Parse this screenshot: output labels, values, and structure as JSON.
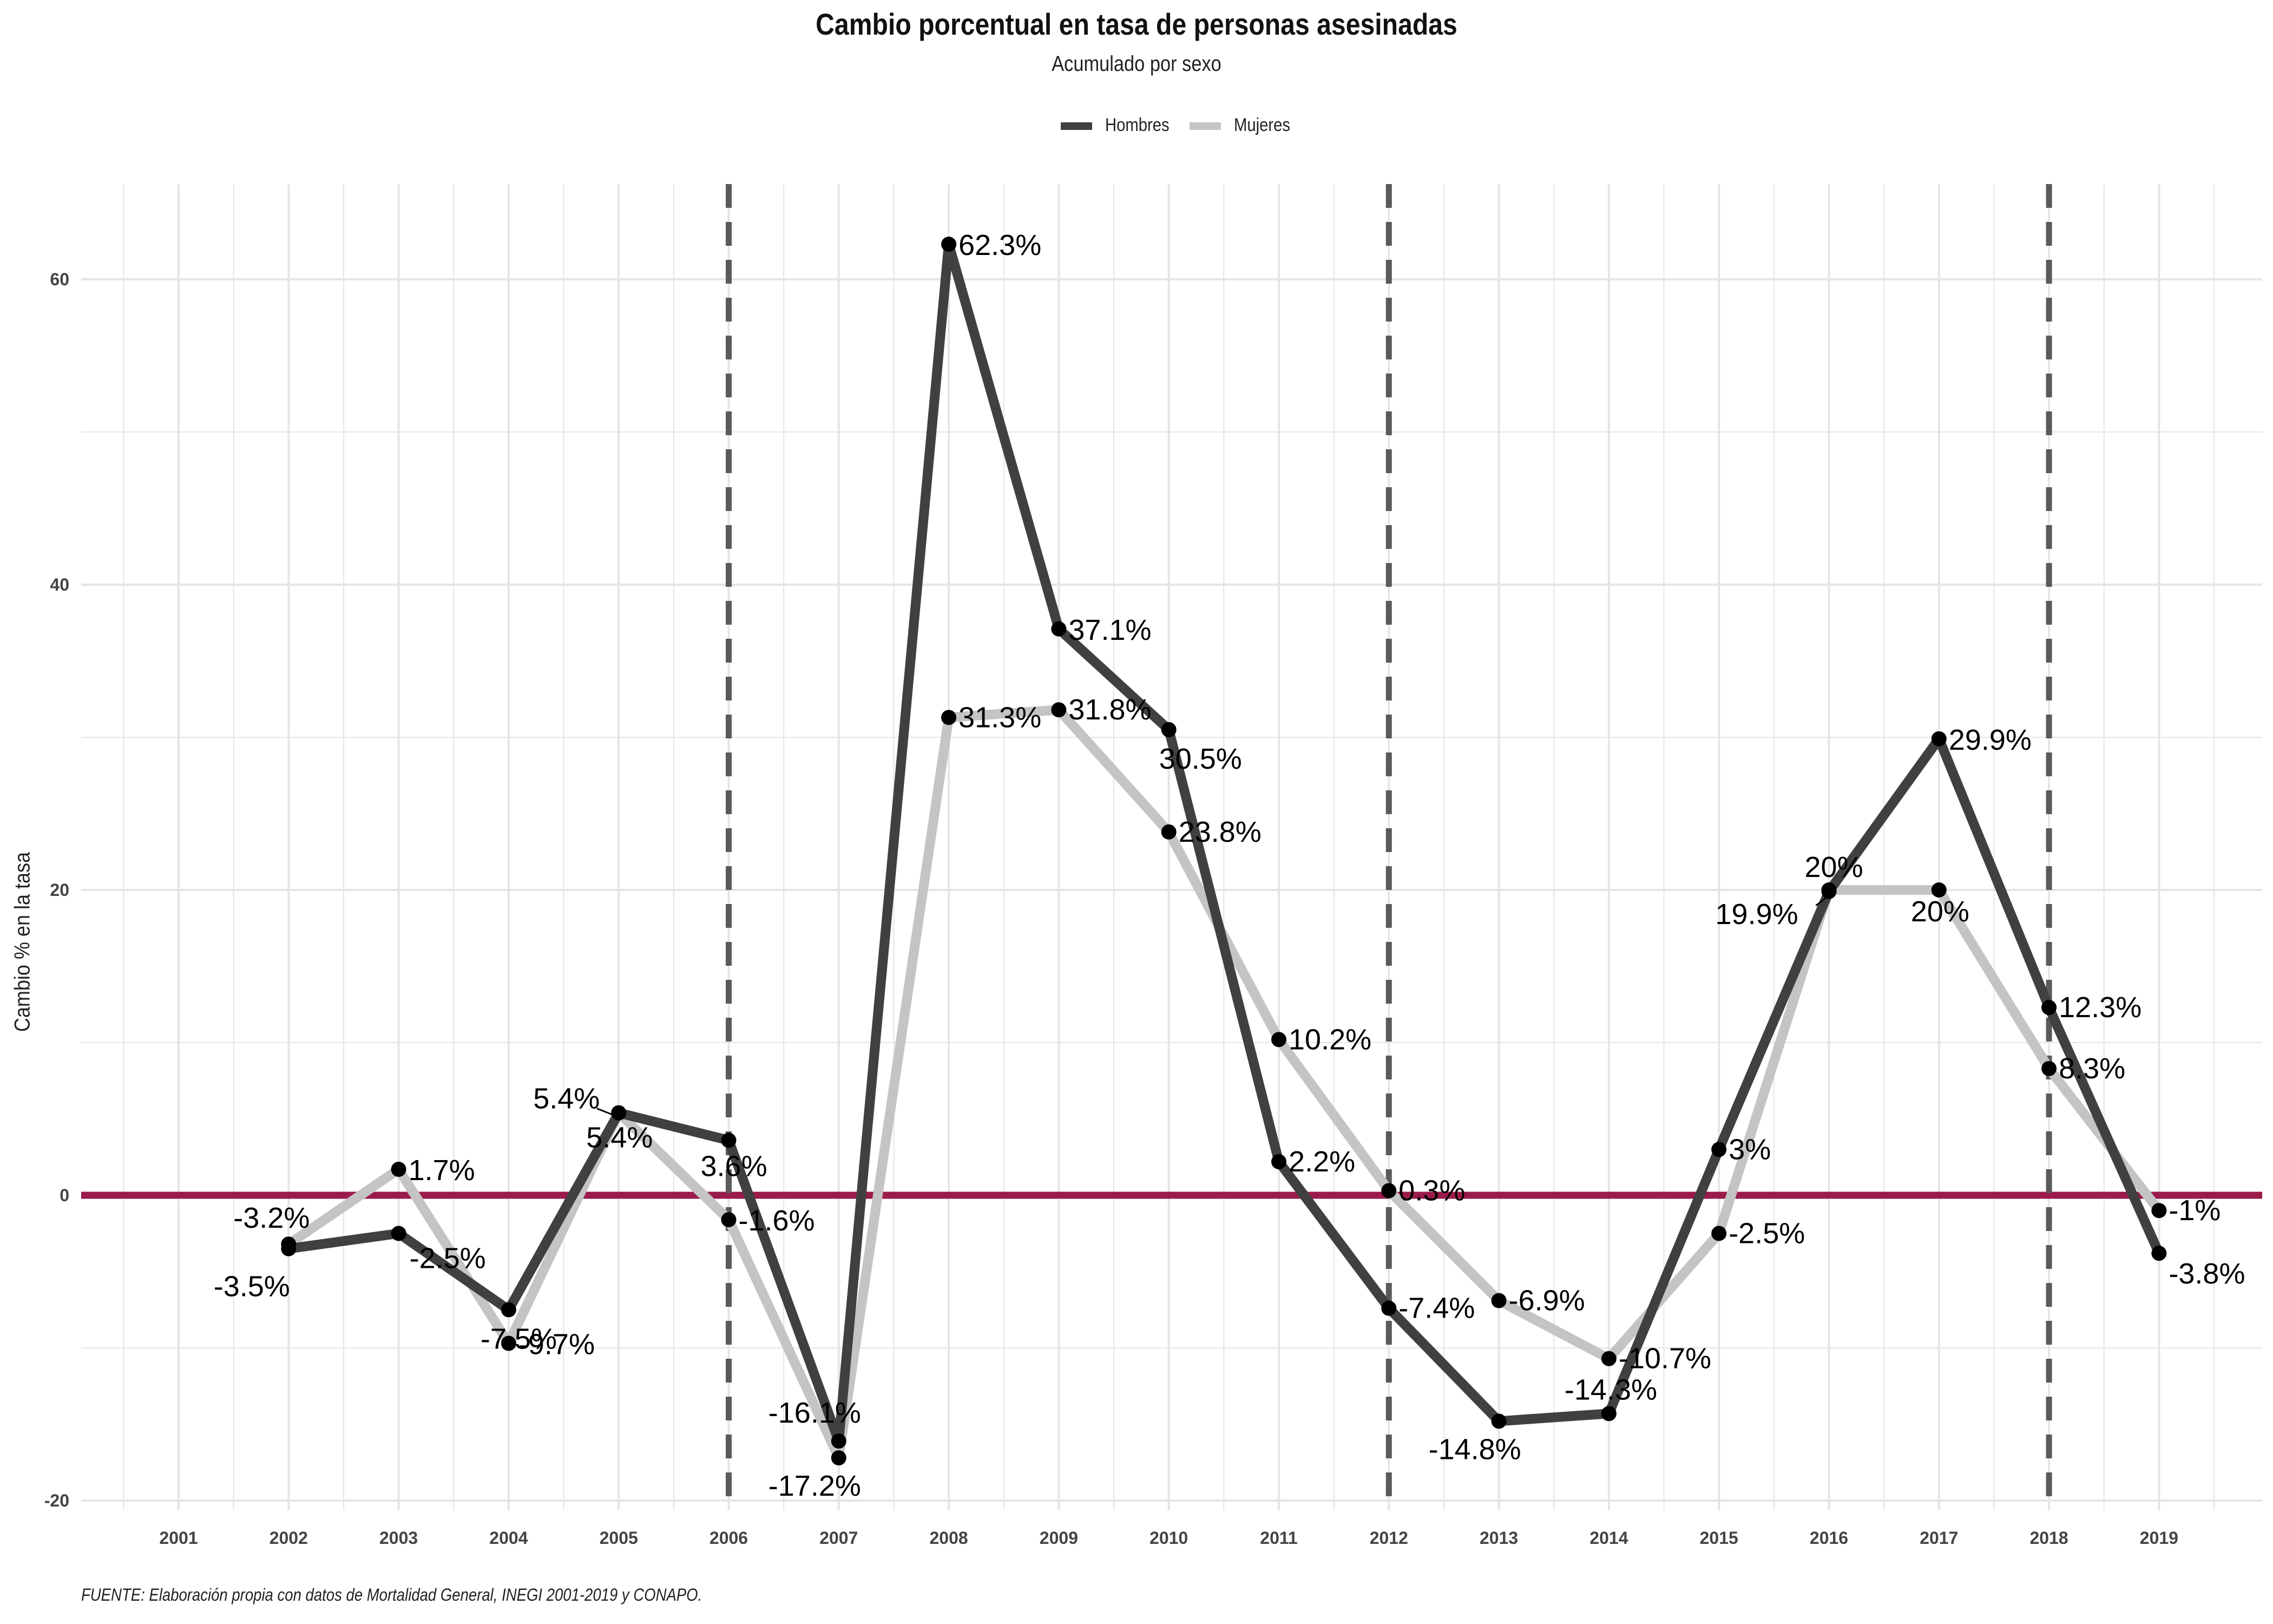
{
  "title": "Cambio porcentual en tasa de personas asesinadas",
  "subtitle": "Acumulado por sexo",
  "caption": "FUENTE: Elaboración propia con datos de Mortalidad General, INEGI 2001-2019 y CONAPO.",
  "colors": {
    "hombres": "#404040",
    "mujeres": "#c4c4c4",
    "zero_line": "#9b1b4a",
    "vlines": "#5a5a5a",
    "grid": "#e5e5e5",
    "points": "#000000"
  },
  "chart_data": {
    "type": "line",
    "ylabel": "Cambio % en la tasa",
    "xlabel": "",
    "categories": [
      "2001",
      "2002",
      "2003",
      "2004",
      "2005",
      "2006",
      "2007",
      "2008",
      "2009",
      "2010",
      "2011",
      "2012",
      "2013",
      "2014",
      "2015",
      "2016",
      "2017",
      "2018",
      "2019"
    ],
    "ylim": [
      -21,
      66
    ],
    "yticks": [
      -20,
      0,
      20,
      40,
      60
    ],
    "grid": true,
    "legend_position": "top",
    "reference_lines": {
      "horizontal": [
        0
      ],
      "vertical_dashed": [
        "2006",
        "2012",
        "2018"
      ]
    },
    "series": [
      {
        "name": "Hombres",
        "color": "#404040",
        "values": [
          null,
          -3.5,
          -2.5,
          -7.5,
          5.4,
          3.6,
          -16.1,
          62.3,
          37.1,
          30.5,
          2.2,
          -7.4,
          -14.8,
          -14.3,
          3,
          19.9,
          29.9,
          12.3,
          -3.8
        ],
        "labels": [
          "",
          "-3.5%",
          "-2.5%",
          "-7.5%",
          "5.4%",
          "3.6%",
          "-16.1%",
          "62.3%",
          "37.1%",
          "30.5%",
          "2.2%",
          "-7.4%",
          "-14.8%",
          "-14.3%",
          "3%",
          "19.9%",
          "29.9%",
          "12.3%",
          "-3.8%"
        ]
      },
      {
        "name": "Mujeres",
        "color": "#c4c4c4",
        "values": [
          null,
          -3.2,
          1.7,
          -9.7,
          5.4,
          -1.6,
          -17.2,
          31.3,
          31.8,
          23.8,
          10.2,
          0.3,
          -6.9,
          -10.7,
          -2.5,
          20,
          20,
          8.3,
          -1
        ],
        "labels": [
          "",
          "-3.2%",
          "1.7%",
          "-9.7%",
          "5.4%",
          "-1.6%",
          "-17.2%",
          "31.3%",
          "31.8%",
          "23.8%",
          "10.2%",
          "0.3%",
          "-6.9%",
          "-10.7%",
          "-2.5%",
          "20%",
          "20%",
          "8.3%",
          "-1%"
        ]
      }
    ]
  }
}
